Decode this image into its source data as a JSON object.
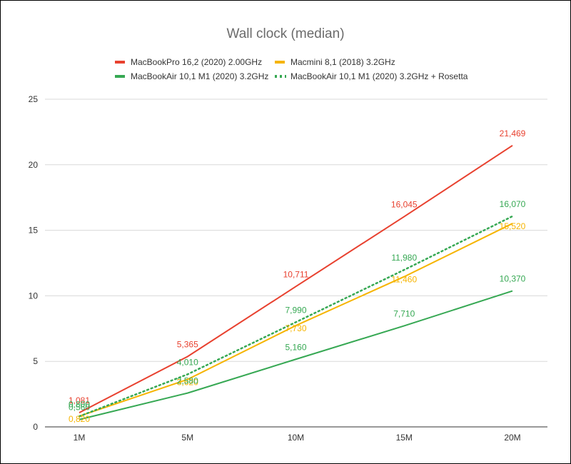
{
  "chart_data": {
    "type": "line",
    "title": "Wall clock (median)",
    "xlabel": "",
    "ylabel": "",
    "categories": [
      "1M",
      "5M",
      "10M",
      "15M",
      "20M"
    ],
    "ylim": [
      0,
      25
    ],
    "yticks": [
      "0",
      "5",
      "10",
      "15",
      "20",
      "25"
    ],
    "grid": true,
    "legend_position": "top",
    "series": [
      {
        "name": "MacBookPro 16,2 (2020) 2.00GHz",
        "color": "#e8412f",
        "style": "solid",
        "values": [
          1.081,
          5.365,
          10.711,
          16.045,
          21.469
        ],
        "labels": [
          "1,081",
          "5,365",
          "10,711",
          "16,045",
          "21,469"
        ]
      },
      {
        "name": "Macmini 8,1 (2018) 3.2GHz",
        "color": "#f6b400",
        "style": "solid",
        "values": [
          0.82,
          3.62,
          7.73,
          11.46,
          15.52
        ],
        "labels": [
          "0,820",
          "3,620",
          "7,730",
          "11,460",
          "15,520"
        ]
      },
      {
        "name": "MacBookAir 10,1 M1 (2020) 3.2GHz",
        "color": "#36a853",
        "style": "solid",
        "values": [
          0.56,
          2.58,
          5.16,
          7.71,
          10.37
        ],
        "labels": [
          "0,560",
          "2,580",
          "5,160",
          "7,710",
          "10,370"
        ]
      },
      {
        "name": "MacBookAir 10,1 M1 (2020) 3.2GHz + Rosetta",
        "color": "#36a853",
        "style": "dotted",
        "values": [
          0.8,
          4.01,
          7.99,
          11.98,
          16.07
        ],
        "labels": [
          "0,800",
          "4,010",
          "7,990",
          "11,980",
          "16,070"
        ]
      }
    ]
  }
}
